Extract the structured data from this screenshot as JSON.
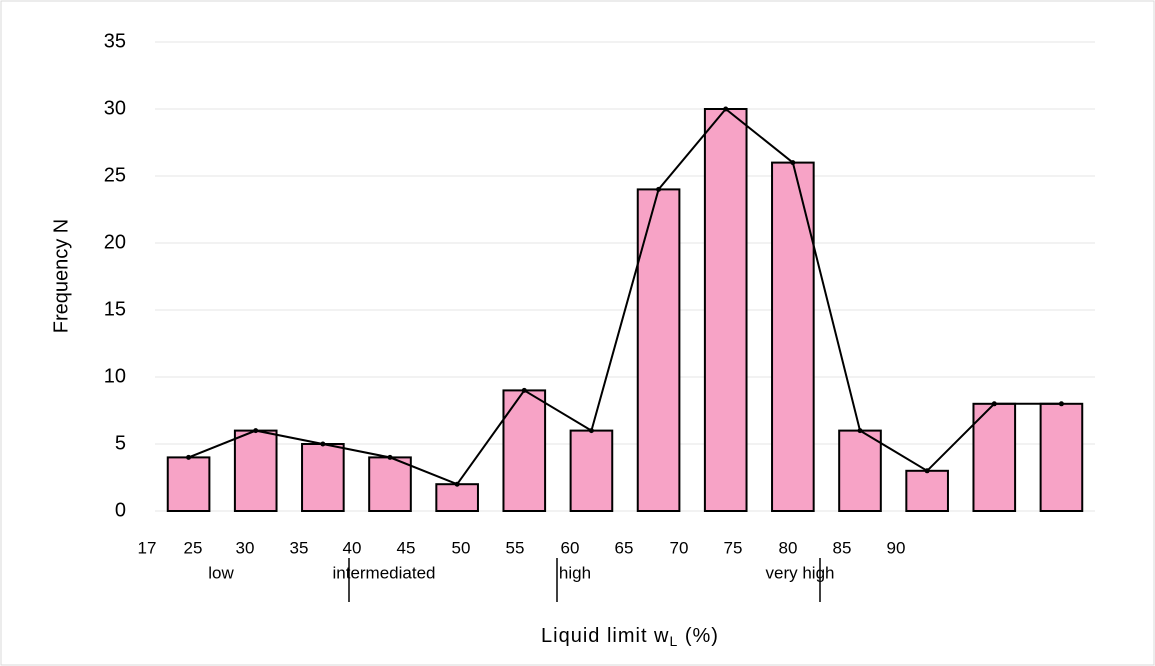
{
  "chart_data": {
    "type": "bar",
    "y_label": "Frequency N",
    "x_label": {
      "text": "Liquid limit  w",
      "subscript": "L",
      "suffix": " (%)"
    },
    "categories": [
      null,
      null,
      null,
      null,
      null,
      null,
      null,
      null,
      null,
      null,
      null,
      null,
      null,
      null
    ],
    "values": [
      4,
      6,
      5,
      4,
      2,
      9,
      6,
      24,
      30,
      26,
      6,
      3,
      8,
      8
    ],
    "color": "#f7a3c6",
    "line": true,
    "ylim": [
      0,
      35
    ],
    "yticks": [
      0,
      5,
      10,
      15,
      20,
      25,
      30,
      35
    ],
    "grid": true,
    "x_tick_labels": [
      "17",
      "25",
      "30",
      "35",
      "40",
      "45",
      "50",
      "55",
      "60",
      "65",
      "70",
      "75",
      "80",
      "85",
      "90"
    ],
    "zones": [
      "low",
      "intermediated",
      "high",
      "very high"
    ]
  }
}
